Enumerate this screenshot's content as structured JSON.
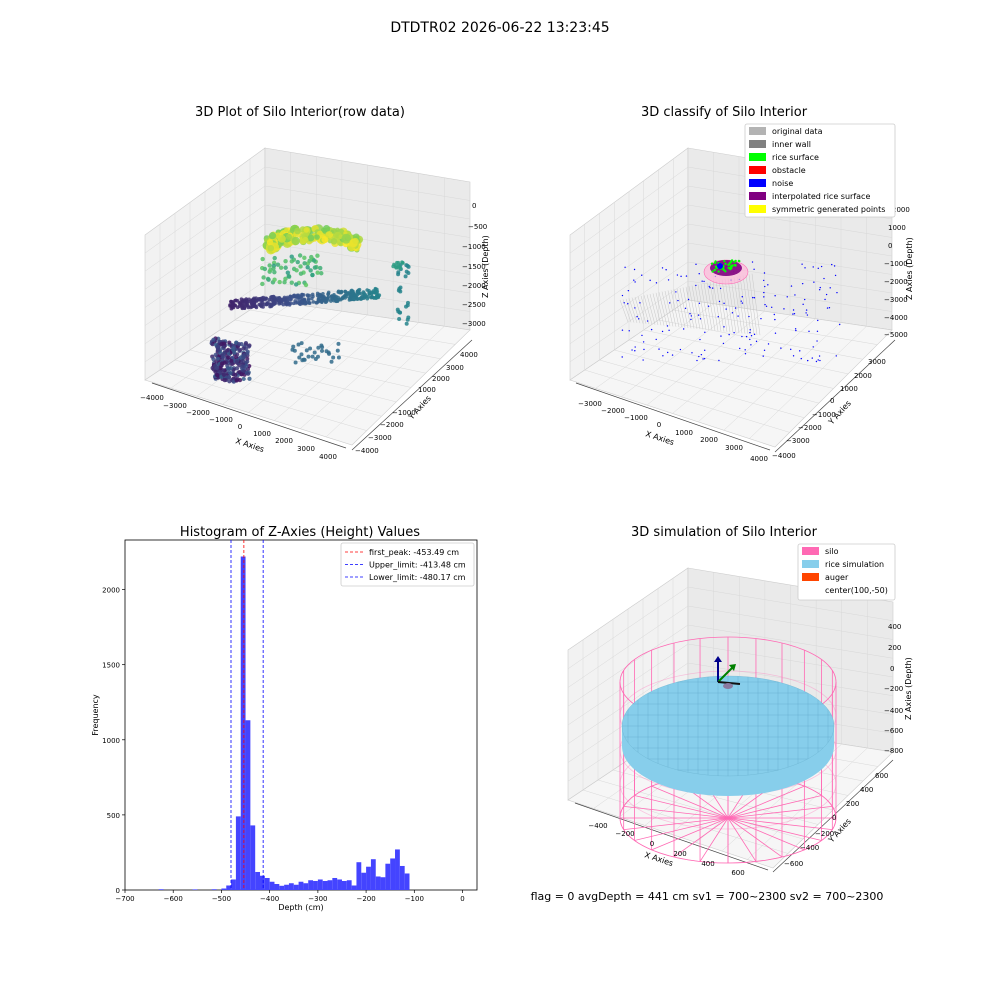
{
  "suptitle": "DTDTR02 2026-06-22 13:23:45",
  "status_text": "flag = 0     avgDepth = 441 cm  sv1 = 700~2300  sv2 = 700~2300",
  "colors": {
    "original": "#b3b3b3",
    "inner_wall": "#808080",
    "rice_surface": "#00ff00",
    "obstacle": "#ff0000",
    "noise": "#0000ff",
    "interpolated": "#800080",
    "symmetric": "#ffff00",
    "hist_bar": "#4444ff",
    "silo": "#ff69b4",
    "rice_sim": "#87ceeb",
    "auger": "#ff4500"
  },
  "chart_data": [
    {
      "type": "scatter",
      "title": "3D Plot of Silo Interior(row data)",
      "xlabel": "X Axies",
      "ylabel": "Y Axies",
      "zlabel": "Z Axies (Depth)",
      "xticks": [
        "−4000",
        "−3000",
        "−2000",
        "−1000",
        "0",
        "1000",
        "2000",
        "3000",
        "4000"
      ],
      "yticks": [
        "4000",
        "3000",
        "2000",
        "1000",
        "−1000",
        "−2000",
        "−3000",
        "−4000"
      ],
      "zticks": [
        "0",
        "−500",
        "−1000",
        "−1500",
        "−2000",
        "−2500",
        "−3000"
      ],
      "xlim": [
        -4000,
        4000
      ],
      "ylim": [
        -4000,
        4000
      ],
      "zlim": [
        -3300,
        0
      ]
    },
    {
      "type": "scatter",
      "title": "3D classify of Silo Interior",
      "xlabel": "X Axies",
      "ylabel": "Y Axies",
      "zlabel": "Z Axies (Depth)",
      "xticks": [
        "−3000",
        "−2000",
        "−1000",
        "0",
        "1000",
        "2000",
        "3000",
        "4000"
      ],
      "yticks": [
        "3000",
        "2000",
        "1000",
        "0",
        "−1000",
        "−2000",
        "−3000",
        "−4000"
      ],
      "zticks": [
        "2000",
        "1000",
        "0",
        "−1000",
        "−2000",
        "−3000",
        "−4000",
        "−5000"
      ],
      "legend": [
        "original data",
        "inner wall",
        "rice surface",
        "obstacle",
        "noise",
        "interpolated rice surface",
        "symmetric generated points"
      ],
      "legend_position": "top-right"
    },
    {
      "type": "bar",
      "title": "Histogram of Z-Axies (Height) Values",
      "xlabel": "Depth (cm)",
      "ylabel": "Frequency",
      "xlim": [
        -700,
        30
      ],
      "ylim": [
        0,
        2330
      ],
      "xticks": [
        -700,
        -600,
        -500,
        -400,
        -300,
        -200,
        -100,
        0
      ],
      "yticks": [
        0,
        500,
        1000,
        1500,
        2000
      ],
      "bin_width": 10,
      "bins": [
        [
          -630,
          5
        ],
        [
          -560,
          4
        ],
        [
          -520,
          5
        ],
        [
          -500,
          10
        ],
        [
          -490,
          30
        ],
        [
          -480,
          70
        ],
        [
          -470,
          490
        ],
        [
          -460,
          2220
        ],
        [
          -450,
          1130
        ],
        [
          -440,
          430
        ],
        [
          -430,
          120
        ],
        [
          -420,
          95
        ],
        [
          -410,
          80
        ],
        [
          -400,
          55
        ],
        [
          -390,
          40
        ],
        [
          -380,
          28
        ],
        [
          -370,
          35
        ],
        [
          -360,
          45
        ],
        [
          -350,
          35
        ],
        [
          -340,
          55
        ],
        [
          -330,
          45
        ],
        [
          -320,
          65
        ],
        [
          -310,
          60
        ],
        [
          -300,
          70
        ],
        [
          -290,
          60
        ],
        [
          -280,
          65
        ],
        [
          -270,
          80
        ],
        [
          -260,
          70
        ],
        [
          -250,
          60
        ],
        [
          -240,
          65
        ],
        [
          -230,
          30
        ],
        [
          -220,
          185
        ],
        [
          -210,
          115
        ],
        [
          -200,
          155
        ],
        [
          -190,
          205
        ],
        [
          -180,
          90
        ],
        [
          -170,
          85
        ],
        [
          -160,
          175
        ],
        [
          -150,
          210
        ],
        [
          -140,
          270
        ],
        [
          -130,
          160
        ],
        [
          -120,
          110
        ]
      ],
      "lines": [
        {
          "label": "first_peak: -453.49 cm",
          "value": -453.49,
          "color": "#ff0000"
        },
        {
          "label": "Upper_limit: -413.48 cm",
          "value": -413.48,
          "color": "#0000ff"
        },
        {
          "label": "Lower_limit: -480.17 cm",
          "value": -480.17,
          "color": "#0000ff"
        }
      ],
      "legend_position": "top-right"
    },
    {
      "type": "scatter",
      "title": "3D simulation of Silo Interior",
      "xlabel": "X Axies",
      "ylabel": "Y Axies",
      "zlabel": "Z Axies (Depth)",
      "xticks": [
        "−400",
        "−200",
        "0",
        "200",
        "400",
        "600"
      ],
      "yticks": [
        "600",
        "400",
        "200",
        "0",
        "−200",
        "−400",
        "−600"
      ],
      "zticks": [
        "400",
        "200",
        "0",
        "−200",
        "−400",
        "−600",
        "−800"
      ],
      "legend": [
        "silo",
        "rice simulation",
        "auger",
        "center(100,-50)"
      ],
      "legend_position": "top-right"
    }
  ]
}
